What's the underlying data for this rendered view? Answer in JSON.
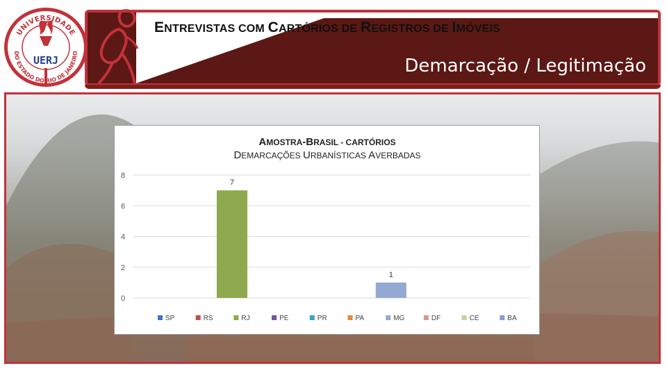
{
  "header": {
    "title_parts": [
      {
        "text": "E",
        "size": "big"
      },
      {
        "text": "NTREVISTAS COM ",
        "size": "small"
      },
      {
        "text": "C",
        "size": "big"
      },
      {
        "text": "ARTÓRIOS DE ",
        "size": "small"
      },
      {
        "text": "R",
        "size": "big"
      },
      {
        "text": "EGISTROS DE ",
        "size": "small"
      },
      {
        "text": "I",
        "size": "big"
      },
      {
        "text": "MÓVEIS",
        "size": "small"
      }
    ],
    "subtitle": "Demarcação / Legitimação"
  },
  "logo": {
    "ring_text_top": "UNIVERSIDADE",
    "ring_text_bottom": "DO ESTADO DO RIO DE JANEIRO",
    "acronym": "UERJ"
  },
  "colors": {
    "brand_red": "#c2323a",
    "band_dark": "#5b1814",
    "bar_green": "#8ea94e",
    "bar_blue": "#93a9d3"
  },
  "chart_data": {
    "type": "bar",
    "title_line1": [
      {
        "text": "A",
        "size": "big"
      },
      {
        "text": "MOSTRA",
        "size": "small"
      },
      {
        "text": "-B",
        "size": "big"
      },
      {
        "text": "RASIL - C",
        "size": "mixed"
      },
      {
        "text": "ARTÓRIOS",
        "size": "small"
      }
    ],
    "title_line2": [
      {
        "text": "D",
        "size": "big"
      },
      {
        "text": "EMARCAÇÕES ",
        "size": "small"
      },
      {
        "text": "U",
        "size": "big"
      },
      {
        "text": "RBANÍSTICAS ",
        "size": "small"
      },
      {
        "text": "A",
        "size": "big"
      },
      {
        "text": "VERBADAS",
        "size": "small"
      }
    ],
    "series": [
      {
        "name": "SP",
        "value": null,
        "color": "#4472c4"
      },
      {
        "name": "RS",
        "value": null,
        "color": "#c0504d"
      },
      {
        "name": "RJ",
        "value": 7,
        "color": "#8ea94e"
      },
      {
        "name": "PE",
        "value": null,
        "color": "#7354a0"
      },
      {
        "name": "PR",
        "value": null,
        "color": "#3fa3bd"
      },
      {
        "name": "PA",
        "value": null,
        "color": "#e5893c"
      },
      {
        "name": "MG",
        "value": 1,
        "color": "#93a9d3"
      },
      {
        "name": "DF",
        "value": null,
        "color": "#d59896"
      },
      {
        "name": "CE",
        "value": null,
        "color": "#bfd49a"
      },
      {
        "name": "BA",
        "value": null,
        "color": "#8b9bd1"
      }
    ],
    "y_ticks": [
      "0",
      "2",
      "4",
      "6",
      "8"
    ],
    "ylim": [
      0,
      8
    ],
    "grid": true,
    "legend": "bottom"
  }
}
